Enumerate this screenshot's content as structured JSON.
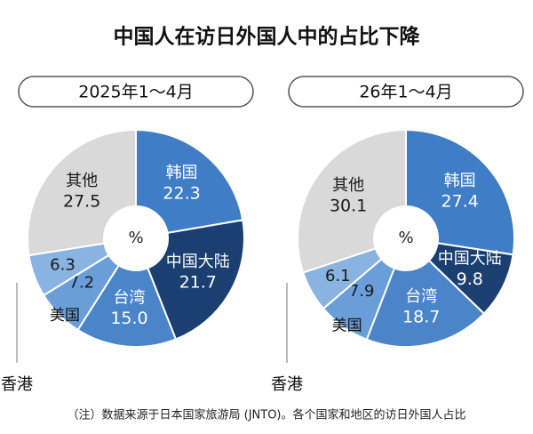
{
  "title": "中国人在访日外国人中的占比下降",
  "note": "（注）数据来源于日本国家旅游局 (JNTO)。各个国家和地区的访日外国人占比",
  "chart_data": [
    {
      "type": "pie",
      "subtitle": "2025年1～4月",
      "center_label": "%",
      "categories": [
        "韩国",
        "中国大陆",
        "台湾",
        "美国",
        "香港",
        "其他"
      ],
      "values": [
        22.3,
        21.7,
        15.0,
        7.2,
        6.3,
        27.5
      ],
      "value_labels": [
        "22.3",
        "21.7",
        "15.0",
        "7.2",
        "6.3",
        "27.5"
      ],
      "colors": [
        "#3f7dc6",
        "#1b3f70",
        "#4a84c9",
        "#6a9ed8",
        "#89b3e1",
        "#d9d9d9"
      ]
    },
    {
      "type": "pie",
      "subtitle": "26年1～4月",
      "center_label": "%",
      "categories": [
        "韩国",
        "中国大陆",
        "台湾",
        "美国",
        "香港",
        "其他"
      ],
      "values": [
        27.4,
        9.8,
        18.7,
        7.9,
        6.1,
        30.1
      ],
      "value_labels": [
        "27.4",
        "9.8",
        "18.7",
        "7.9",
        "6.1",
        "30.1"
      ],
      "colors": [
        "#3f7dc6",
        "#1b3f70",
        "#4a84c9",
        "#6a9ed8",
        "#89b3e1",
        "#d9d9d9"
      ]
    }
  ]
}
